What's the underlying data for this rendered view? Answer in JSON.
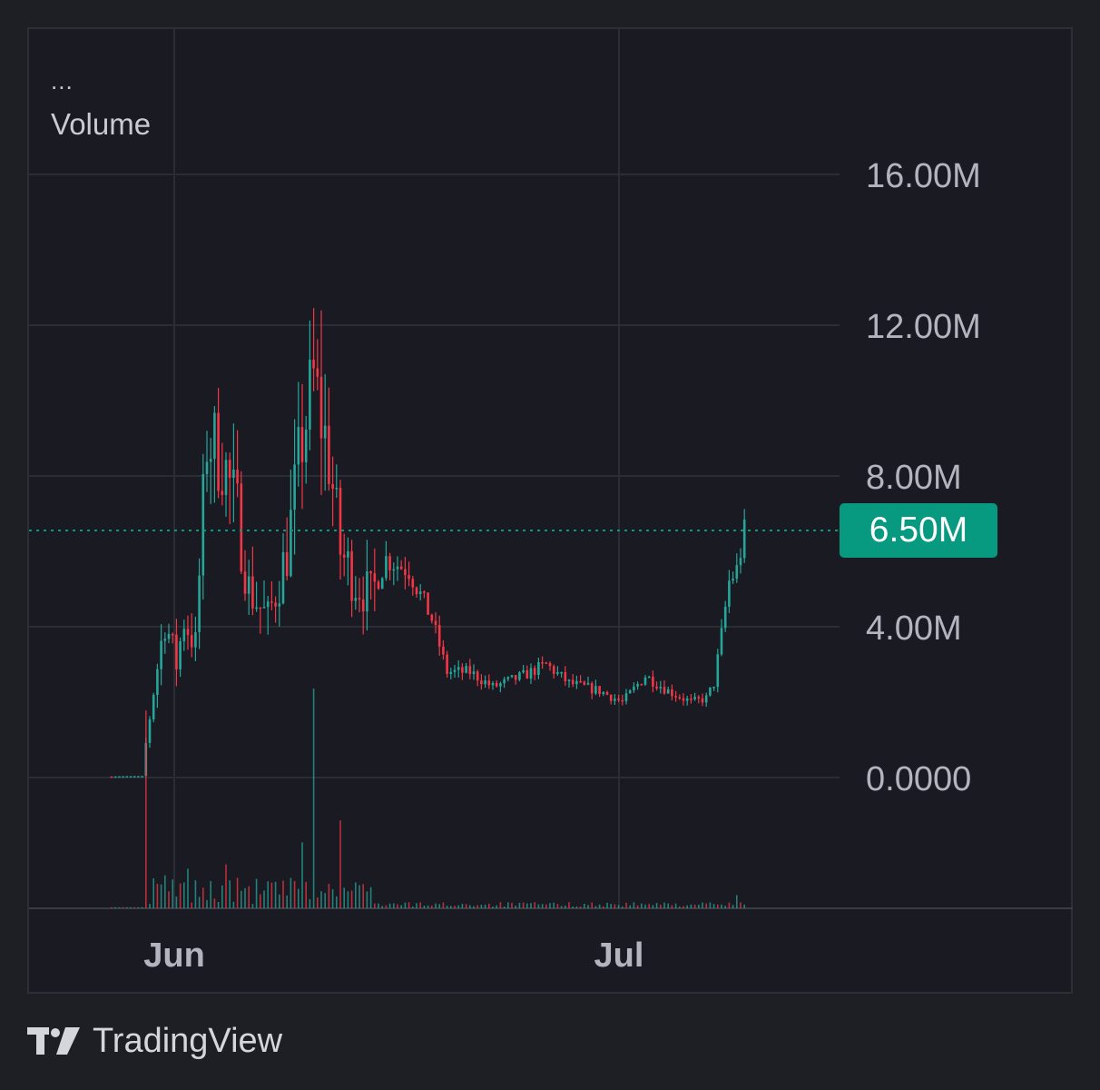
{
  "legend": {
    "menu": "...",
    "volume_label": "Volume"
  },
  "brand": {
    "logo_icon": "tradingview-logo-icon",
    "name": "TradingView"
  },
  "last_price_label": "6.50M",
  "colors": {
    "background": "#1a1b22",
    "grid": "#2b2d35",
    "up": "#26a69a",
    "down": "#f23645",
    "price_line": "#089981",
    "axis_text": "#b2b5be"
  },
  "chart_data": {
    "type": "candlestick",
    "y_axis": {
      "ticks": [
        0,
        4000000,
        8000000,
        12000000,
        16000000
      ],
      "tick_labels": [
        "0.0000",
        "4.00M",
        "8.00M",
        "12.00M",
        "16.00M"
      ],
      "position": "right"
    },
    "x_axis": {
      "tick_labels": [
        "Jun",
        "Jul"
      ]
    },
    "last_price": 6500000,
    "grid": true,
    "price_key_points": [
      {
        "t": 0,
        "v": 30000
      },
      {
        "t": 8,
        "v": 40000
      },
      {
        "t": 9,
        "v": 900000
      },
      {
        "t": 11,
        "v": 2300000
      },
      {
        "t": 14,
        "v": 4200000
      },
      {
        "t": 17,
        "v": 3000000
      },
      {
        "t": 19,
        "v": 4200000
      },
      {
        "t": 22,
        "v": 3500000
      },
      {
        "t": 25,
        "v": 9000000
      },
      {
        "t": 29,
        "v": 8500000
      },
      {
        "t": 33,
        "v": 7000000
      },
      {
        "t": 36,
        "v": 5000000
      },
      {
        "t": 41,
        "v": 4200000
      },
      {
        "t": 46,
        "v": 6000000
      },
      {
        "t": 50,
        "v": 9000000
      },
      {
        "t": 53,
        "v": 10500000
      },
      {
        "t": 57,
        "v": 8500000
      },
      {
        "t": 60,
        "v": 6000000
      },
      {
        "t": 64,
        "v": 5200000
      },
      {
        "t": 68,
        "v": 4800000
      },
      {
        "t": 72,
        "v": 5800000
      },
      {
        "t": 78,
        "v": 5500000
      },
      {
        "t": 84,
        "v": 4200000
      },
      {
        "t": 88,
        "v": 2800000
      },
      {
        "t": 94,
        "v": 2800000
      },
      {
        "t": 100,
        "v": 2400000
      },
      {
        "t": 108,
        "v": 2700000
      },
      {
        "t": 114,
        "v": 3000000
      },
      {
        "t": 120,
        "v": 2500000
      },
      {
        "t": 128,
        "v": 2300000
      },
      {
        "t": 134,
        "v": 2000000
      },
      {
        "t": 140,
        "v": 2700000
      },
      {
        "t": 146,
        "v": 2300000
      },
      {
        "t": 152,
        "v": 2000000
      },
      {
        "t": 156,
        "v": 2100000
      },
      {
        "t": 158,
        "v": 2500000
      },
      {
        "t": 160,
        "v": 3800000
      },
      {
        "t": 162,
        "v": 5200000
      },
      {
        "t": 164,
        "v": 5500000
      },
      {
        "t": 166,
        "v": 6500000
      }
    ],
    "volume_spikes": [
      {
        "t": 9,
        "v": 0.9
      },
      {
        "t": 14,
        "v": 0.15
      },
      {
        "t": 20,
        "v": 0.18
      },
      {
        "t": 30,
        "v": 0.2
      },
      {
        "t": 50,
        "v": 0.3
      },
      {
        "t": 53,
        "v": 1.0
      },
      {
        "t": 60,
        "v": 0.4
      },
      {
        "t": 164,
        "v": 0.06
      }
    ]
  }
}
